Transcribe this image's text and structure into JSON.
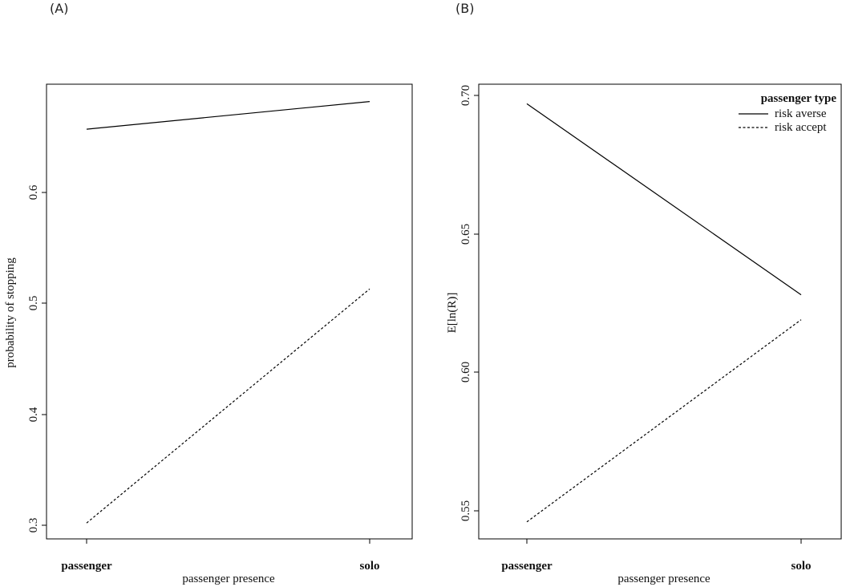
{
  "chart_data": [
    {
      "type": "line",
      "panel_label": "(A)",
      "title": "",
      "xlabel": "passenger presence",
      "ylabel": "probability of stopping",
      "categories": [
        "passenger",
        "solo"
      ],
      "yticks": [
        "0.3",
        "0.4",
        "0.5",
        "0.6"
      ],
      "ylim": [
        0.29,
        0.7
      ],
      "grid": false,
      "series": [
        {
          "name": "risk averse",
          "line_style": "solid",
          "values": [
            0.657,
            0.682
          ]
        },
        {
          "name": "risk accept",
          "line_style": "dashed",
          "values": [
            0.302,
            0.513
          ]
        }
      ]
    },
    {
      "type": "line",
      "panel_label": "(B)",
      "title": "",
      "xlabel": "passenger presence",
      "ylabel": "E[ln(R)]",
      "categories": [
        "passenger",
        "solo"
      ],
      "yticks": [
        "0.55",
        "0.60",
        "0.65",
        "0.70"
      ],
      "ylim": [
        0.54,
        0.705
      ],
      "grid": false,
      "legend": {
        "title": "passenger type",
        "position": "top-right",
        "entries": [
          {
            "label": "risk averse",
            "line_style": "solid"
          },
          {
            "label": "risk accept",
            "line_style": "dashed"
          }
        ]
      },
      "series": [
        {
          "name": "risk averse",
          "line_style": "solid",
          "values": [
            0.697,
            0.628
          ]
        },
        {
          "name": "risk accept",
          "line_style": "dashed",
          "values": [
            0.546,
            0.619
          ]
        }
      ]
    }
  ]
}
